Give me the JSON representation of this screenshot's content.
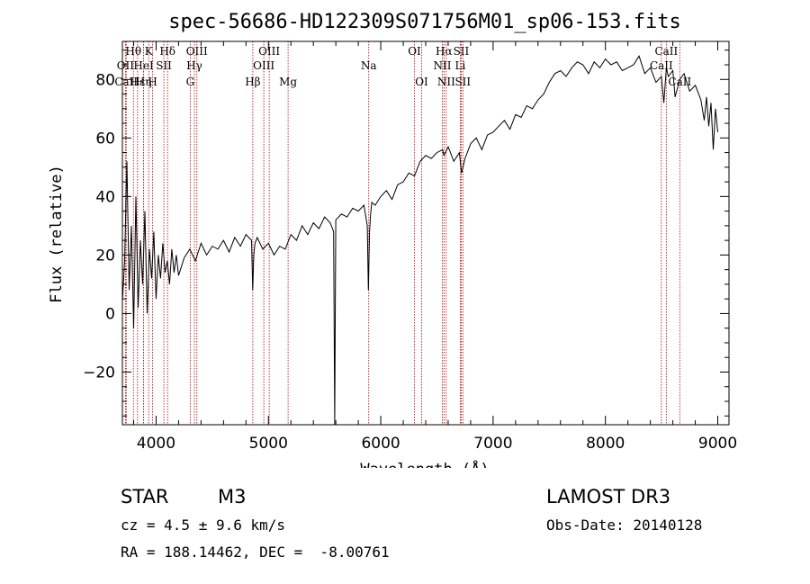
{
  "chart_data": {
    "type": "line",
    "title": "spec-56686-HD122309S071756M01_sp06-153.fits",
    "xlabel": "Wavelength (Å)",
    "ylabel": "Flux (relative)",
    "xlim": [
      3700,
      9100
    ],
    "ylim": [
      -38,
      93
    ],
    "xticks": [
      4000,
      5000,
      6000,
      7000,
      8000,
      9000
    ],
    "yticks": [
      -20,
      0,
      20,
      40,
      60,
      80
    ],
    "grid": false,
    "series": [
      {
        "x": [
          3700,
          3720,
          3740,
          3760,
          3780,
          3800,
          3820,
          3840,
          3860,
          3880,
          3900,
          3920,
          3940,
          3960,
          3980,
          4000,
          4020,
          4040,
          4060,
          4080,
          4100,
          4120,
          4140,
          4160,
          4180,
          4200,
          4250,
          4300,
          4350,
          4400,
          4450,
          4500,
          4550,
          4600,
          4650,
          4700,
          4750,
          4800,
          4850,
          4860,
          4870,
          4880,
          4900,
          4950,
          5000,
          5050,
          5100,
          5150,
          5200,
          5250,
          5300,
          5350,
          5400,
          5450,
          5500,
          5550,
          5580,
          5590,
          5600,
          5650,
          5700,
          5750,
          5800,
          5850,
          5880,
          5890,
          5900,
          5910,
          5920,
          5950,
          6000,
          6050,
          6100,
          6150,
          6200,
          6250,
          6300,
          6350,
          6400,
          6450,
          6500,
          6550,
          6563,
          6600,
          6650,
          6700,
          6720,
          6750,
          6800,
          6850,
          6900,
          6950,
          7000,
          7050,
          7100,
          7150,
          7200,
          7250,
          7300,
          7350,
          7400,
          7450,
          7500,
          7550,
          7600,
          7650,
          7700,
          7750,
          7800,
          7850,
          7900,
          7950,
          8000,
          8050,
          8100,
          8150,
          8200,
          8250,
          8300,
          8350,
          8400,
          8450,
          8498,
          8520,
          8542,
          8560,
          8600,
          8620,
          8662,
          8700,
          8750,
          8800,
          8850,
          8880,
          8900,
          8920,
          8940,
          8960,
          8980,
          9000
        ],
        "y": [
          4,
          18,
          52,
          8,
          30,
          -5,
          40,
          2,
          25,
          10,
          35,
          0,
          22,
          12,
          28,
          5,
          20,
          12,
          24,
          14,
          18,
          10,
          22,
          14,
          20,
          13,
          19,
          22,
          18,
          24,
          20,
          23,
          22,
          25,
          21,
          26,
          23,
          27,
          25,
          8,
          20,
          24,
          26,
          22,
          24,
          20,
          23,
          22,
          27,
          25,
          30,
          27,
          31,
          29,
          33,
          31,
          28,
          -38,
          32,
          34,
          33,
          36,
          35,
          37,
          30,
          8,
          28,
          34,
          38,
          37,
          40,
          42,
          39,
          44,
          45,
          48,
          47,
          52,
          54,
          53,
          55,
          56,
          54,
          57,
          52,
          55,
          48,
          53,
          58,
          60,
          56,
          61,
          62,
          64,
          66,
          63,
          68,
          67,
          71,
          70,
          73,
          75,
          79,
          82,
          83,
          81,
          84,
          86,
          85,
          82,
          86,
          84,
          87,
          85,
          86,
          83,
          84,
          85,
          88,
          82,
          84,
          79,
          81,
          72,
          84,
          81,
          83,
          74,
          80,
          82,
          76,
          78,
          73,
          66,
          74,
          64,
          72,
          56,
          70,
          62
        ]
      }
    ],
    "lines": [
      {
        "label": "Hθ",
        "x": 3798,
        "row": 1
      },
      {
        "label": "OII",
        "x": 3727,
        "row": 2
      },
      {
        "label": "CaII",
        "x": 3734,
        "row": 3
      },
      {
        "label": "Hε",
        "x": 3835,
        "row": 3
      },
      {
        "label": "K",
        "x": 3934,
        "row": 1
      },
      {
        "label": "HeI",
        "x": 3889,
        "row": 2
      },
      {
        "label": "Hη",
        "x": 3889,
        "row": 3
      },
      {
        "label": "H",
        "x": 3969,
        "row": 3
      },
      {
        "label": "SII",
        "x": 4069,
        "row": 2
      },
      {
        "label": "Hδ",
        "x": 4102,
        "row": 1
      },
      {
        "label": "OIII",
        "x": 4363,
        "row": 1
      },
      {
        "label": "Hγ",
        "x": 4341,
        "row": 2
      },
      {
        "label": "G",
        "x": 4304,
        "row": 3
      },
      {
        "label": "Hβ",
        "x": 4861,
        "row": 3
      },
      {
        "label": "OIII",
        "x": 5007,
        "row": 1
      },
      {
        "label": "OIII",
        "x": 4959,
        "row": 2
      },
      {
        "label": "Mg",
        "x": 5175,
        "row": 3
      },
      {
        "label": "Na",
        "x": 5893,
        "row": 2
      },
      {
        "label": "OI",
        "x": 6300,
        "row": 1
      },
      {
        "label": "OI",
        "x": 6364,
        "row": 3
      },
      {
        "label": "Hα",
        "x": 6563,
        "row": 1
      },
      {
        "label": "NII",
        "x": 6548,
        "row": 2
      },
      {
        "label": "NII",
        "x": 6583,
        "row": 3
      },
      {
        "label": "SII",
        "x": 6716,
        "row": 1
      },
      {
        "label": "Li",
        "x": 6708,
        "row": 2
      },
      {
        "label": "SII",
        "x": 6731,
        "row": 3
      },
      {
        "label": "CaII",
        "x": 8542,
        "row": 1
      },
      {
        "label": "CaII",
        "x": 8498,
        "row": 2
      },
      {
        "label": "CaII",
        "x": 8662,
        "row": 3
      }
    ]
  },
  "info": {
    "object_class": "STAR",
    "subclass": "M3",
    "survey": "LAMOST DR3",
    "cz": "cz = 4.5 ± 9.6 km/s",
    "obs_date": "Obs-Date: 20140128",
    "coords": "RA = 188.14462, DEC =  -8.00761"
  },
  "colors": {
    "spectrum": "#000000",
    "line_marker": "#b30000",
    "axes": "#000000",
    "background": "#ffffff"
  }
}
